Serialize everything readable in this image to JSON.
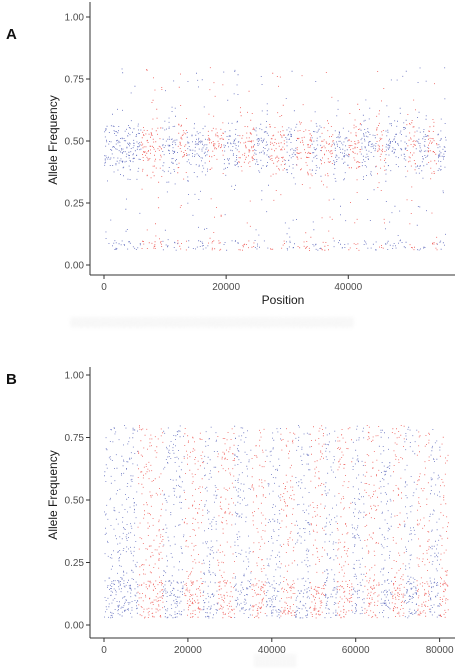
{
  "panels": [
    {
      "letter": "A"
    },
    {
      "letter": "B"
    }
  ],
  "colors": {
    "blue": "#2f3ea8",
    "red": "#e8231e",
    "axis": "#333333"
  },
  "chart_data": [
    {
      "type": "scatter",
      "panel": "A",
      "title": "",
      "xlabel": "Position",
      "ylabel": "Allele Frequency",
      "xlim": [
        0,
        56000
      ],
      "ylim": [
        0.0,
        1.0
      ],
      "xticks": [
        "0",
        "20000",
        "40000"
      ],
      "xtick_values": [
        0,
        20000,
        40000
      ],
      "yticks": [
        "0.00",
        "0.25",
        "0.50",
        "0.75",
        "1.00"
      ],
      "ytick_values": [
        0.0,
        0.25,
        0.5,
        0.75,
        1.0
      ],
      "grid": false,
      "legend": "none",
      "point_count_note": "dense scatter of ~56000 SNP positions colored alternately blue and red by chromosome block; most points between 0.35 and 0.60, sparse points near 0.05 and up to 0.80",
      "color_blocks": [
        {
          "start": 0,
          "end": 6000,
          "color": "blue"
        },
        {
          "start": 6000,
          "end": 9500,
          "color": "red"
        },
        {
          "start": 9500,
          "end": 12000,
          "color": "blue"
        },
        {
          "start": 12000,
          "end": 13500,
          "color": "red"
        },
        {
          "start": 13500,
          "end": 17000,
          "color": "blue"
        },
        {
          "start": 17000,
          "end": 19500,
          "color": "red"
        },
        {
          "start": 19500,
          "end": 22000,
          "color": "blue"
        },
        {
          "start": 22000,
          "end": 24500,
          "color": "red"
        },
        {
          "start": 24500,
          "end": 27000,
          "color": "blue"
        },
        {
          "start": 27000,
          "end": 29500,
          "color": "red"
        },
        {
          "start": 29500,
          "end": 31500,
          "color": "blue"
        },
        {
          "start": 31500,
          "end": 34000,
          "color": "red"
        },
        {
          "start": 34000,
          "end": 35500,
          "color": "blue"
        },
        {
          "start": 35500,
          "end": 37500,
          "color": "red"
        },
        {
          "start": 37500,
          "end": 40000,
          "color": "blue"
        },
        {
          "start": 40000,
          "end": 42000,
          "color": "red"
        },
        {
          "start": 42000,
          "end": 44500,
          "color": "blue"
        },
        {
          "start": 44500,
          "end": 46000,
          "color": "red"
        },
        {
          "start": 46000,
          "end": 49500,
          "color": "blue"
        },
        {
          "start": 49500,
          "end": 51000,
          "color": "red"
        },
        {
          "start": 51000,
          "end": 53000,
          "color": "blue"
        },
        {
          "start": 53000,
          "end": 54500,
          "color": "red"
        },
        {
          "start": 54500,
          "end": 56000,
          "color": "blue"
        }
      ]
    },
    {
      "type": "scatter",
      "panel": "B",
      "title": "",
      "xlabel": "",
      "ylabel": "Allele Frequency",
      "xlim": [
        0,
        82000
      ],
      "ylim": [
        0.0,
        1.0
      ],
      "xticks": [
        "0",
        "20000",
        "40000",
        "60000",
        "80000"
      ],
      "xtick_values": [
        0,
        20000,
        40000,
        60000,
        80000
      ],
      "yticks": [
        "0.00",
        "0.25",
        "0.50",
        "0.75",
        "1.00"
      ],
      "ytick_values": [
        0.0,
        0.25,
        0.5,
        0.75,
        1.0
      ],
      "grid": false,
      "legend": "none",
      "point_count_note": "dense scatter of ~82000 SNP positions colored alternately blue and red by chromosome block; points fill 0.03 to 0.80 uniformly",
      "color_blocks": [
        {
          "start": 0,
          "end": 8000,
          "color": "blue"
        },
        {
          "start": 8000,
          "end": 14000,
          "color": "red"
        },
        {
          "start": 14000,
          "end": 19000,
          "color": "blue"
        },
        {
          "start": 19000,
          "end": 23500,
          "color": "red"
        },
        {
          "start": 23500,
          "end": 27000,
          "color": "blue"
        },
        {
          "start": 27000,
          "end": 31000,
          "color": "red"
        },
        {
          "start": 31000,
          "end": 35000,
          "color": "blue"
        },
        {
          "start": 35000,
          "end": 38500,
          "color": "red"
        },
        {
          "start": 38500,
          "end": 42000,
          "color": "blue"
        },
        {
          "start": 42000,
          "end": 45500,
          "color": "red"
        },
        {
          "start": 45500,
          "end": 49000,
          "color": "blue"
        },
        {
          "start": 49000,
          "end": 52500,
          "color": "red"
        },
        {
          "start": 52500,
          "end": 55500,
          "color": "blue"
        },
        {
          "start": 55500,
          "end": 59000,
          "color": "red"
        },
        {
          "start": 59000,
          "end": 62000,
          "color": "blue"
        },
        {
          "start": 62000,
          "end": 65500,
          "color": "red"
        },
        {
          "start": 65500,
          "end": 68500,
          "color": "blue"
        },
        {
          "start": 68500,
          "end": 71500,
          "color": "red"
        },
        {
          "start": 71500,
          "end": 74500,
          "color": "blue"
        },
        {
          "start": 74500,
          "end": 77500,
          "color": "red"
        },
        {
          "start": 77500,
          "end": 80000,
          "color": "blue"
        },
        {
          "start": 80000,
          "end": 82000,
          "color": "red"
        }
      ]
    }
  ]
}
